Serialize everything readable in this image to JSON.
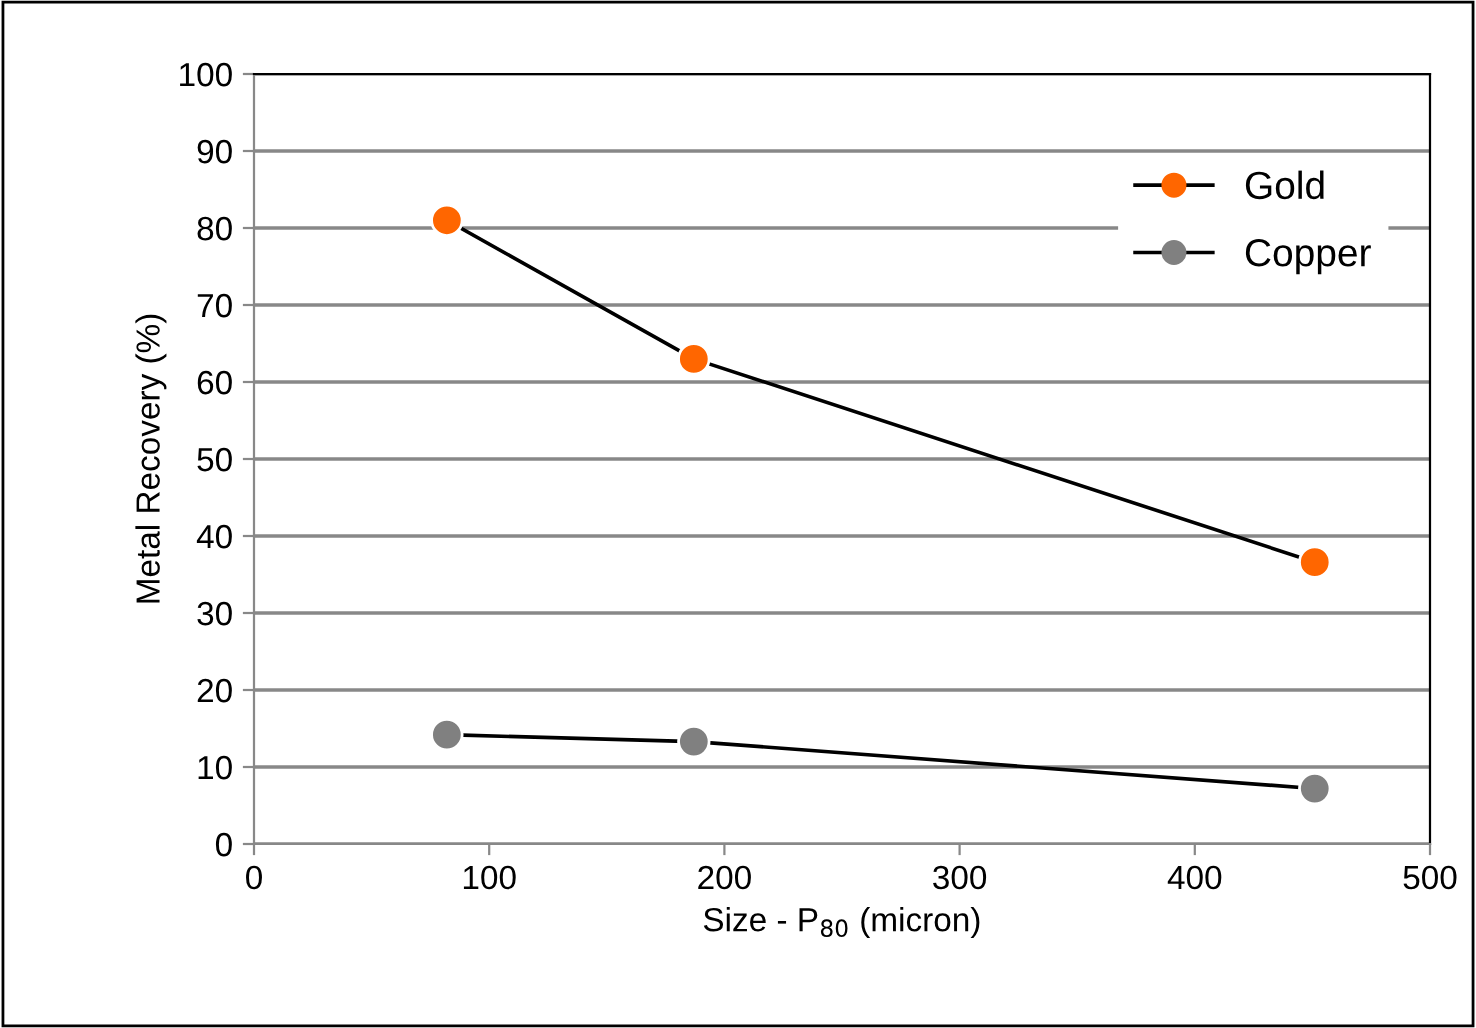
{
  "chart_data": {
    "type": "line",
    "xlabel": "Size - P$_{80}$ (micron)",
    "ylabel": "Metal Recovery (%)",
    "series": [
      {
        "name": "Gold",
        "color": "#ff6600",
        "x": [
          82,
          187,
          451
        ],
        "values": [
          81,
          63,
          36.6
        ]
      },
      {
        "name": "Copper",
        "color": "#808080",
        "x": [
          82,
          187,
          451
        ],
        "values": [
          14.2,
          13.3,
          7.2
        ]
      }
    ],
    "xlim": [
      0,
      500
    ],
    "xticks": [
      0,
      100,
      200,
      300,
      400,
      500
    ],
    "ylim": [
      0,
      100
    ],
    "yticks": [
      0,
      10,
      20,
      30,
      40,
      50,
      60,
      70,
      80,
      90,
      100
    ],
    "grid": "y",
    "legend": "top right",
    "marker": "circle",
    "line_style": "solid"
  }
}
